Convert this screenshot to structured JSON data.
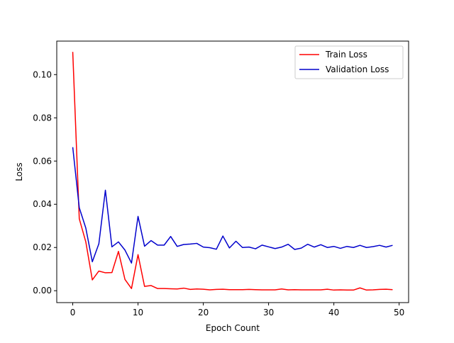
{
  "chart_data": {
    "type": "line",
    "title": "",
    "xlabel": "Epoch Count",
    "ylabel": "Loss",
    "xlim": [
      -2.45,
      51.45
    ],
    "ylim": [
      -0.0055,
      0.1155
    ],
    "xticks": [
      0,
      10,
      20,
      30,
      40,
      50
    ],
    "yticks": [
      0.0,
      0.02,
      0.04,
      0.06,
      0.08,
      0.1
    ],
    "ytick_labels": [
      "0.00",
      "0.02",
      "0.04",
      "0.06",
      "0.08",
      "0.10"
    ],
    "grid": false,
    "legend_position": "upper right",
    "x": [
      0,
      1,
      2,
      3,
      4,
      5,
      6,
      7,
      8,
      9,
      10,
      11,
      12,
      13,
      14,
      15,
      16,
      17,
      18,
      19,
      20,
      21,
      22,
      23,
      24,
      25,
      26,
      27,
      28,
      29,
      30,
      31,
      32,
      33,
      34,
      35,
      36,
      37,
      38,
      39,
      40,
      41,
      42,
      43,
      44,
      45,
      46,
      47,
      48,
      49
    ],
    "series": [
      {
        "name": "Train Loss",
        "color": "#ff0000",
        "values": [
          0.1105,
          0.0333,
          0.0226,
          0.005,
          0.0091,
          0.0083,
          0.0084,
          0.0182,
          0.0052,
          0.001,
          0.0167,
          0.002,
          0.0024,
          0.001,
          0.001,
          0.0009,
          0.0008,
          0.0012,
          0.0006,
          0.0008,
          0.0007,
          0.0004,
          0.0006,
          0.0007,
          0.0005,
          0.0005,
          0.0005,
          0.0006,
          0.0005,
          0.0004,
          0.0004,
          0.0004,
          0.0008,
          0.0004,
          0.0005,
          0.0004,
          0.0004,
          0.0004,
          0.0004,
          0.0007,
          0.0003,
          0.0004,
          0.0003,
          0.0003,
          0.0013,
          0.0003,
          0.0004,
          0.0006,
          0.0007,
          0.0005
        ]
      },
      {
        "name": "Validation Loss",
        "color": "#0000cc",
        "values": [
          0.0664,
          0.0384,
          0.029,
          0.0134,
          0.0217,
          0.0465,
          0.0203,
          0.0226,
          0.0188,
          0.0128,
          0.0344,
          0.0206,
          0.0232,
          0.0211,
          0.0211,
          0.0251,
          0.0205,
          0.0214,
          0.0216,
          0.0219,
          0.0202,
          0.0199,
          0.0192,
          0.0253,
          0.0198,
          0.0229,
          0.02,
          0.0202,
          0.0194,
          0.0211,
          0.0203,
          0.0195,
          0.0202,
          0.0215,
          0.0191,
          0.0197,
          0.0215,
          0.0202,
          0.0213,
          0.02,
          0.0205,
          0.0196,
          0.0205,
          0.02,
          0.021,
          0.02,
          0.0204,
          0.021,
          0.0202,
          0.021
        ]
      }
    ]
  }
}
